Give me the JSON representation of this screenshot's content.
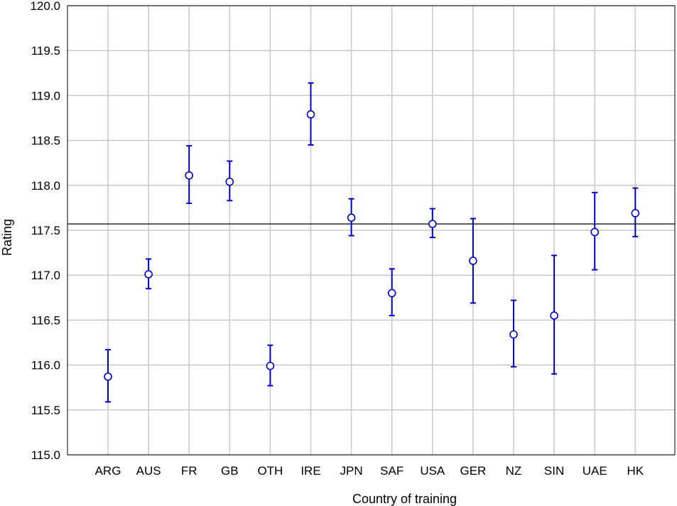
{
  "chart_data": {
    "type": "scatter",
    "title": "",
    "xlabel": "Country of training",
    "ylabel": "Rating",
    "ylim": [
      115.0,
      120.0
    ],
    "yticks": [
      "115.0",
      "115.5",
      "116.0",
      "116.5",
      "117.0",
      "117.5",
      "118.0",
      "118.5",
      "119.0",
      "119.5",
      "120.0"
    ],
    "grid": true,
    "categories": [
      "ARG",
      "AUS",
      "FR",
      "GB",
      "OTH",
      "IRE",
      "JPN",
      "SAF",
      "USA",
      "GER",
      "NZ",
      "SIN",
      "UAE",
      "HK"
    ],
    "values": [
      115.87,
      117.01,
      118.11,
      118.04,
      115.99,
      118.79,
      117.64,
      116.8,
      117.57,
      117.16,
      116.34,
      116.55,
      117.48,
      117.69
    ],
    "error_low": [
      115.59,
      116.85,
      117.8,
      117.83,
      115.77,
      118.45,
      117.44,
      116.55,
      117.42,
      116.69,
      115.98,
      115.9,
      117.06,
      117.43
    ],
    "error_high": [
      116.17,
      117.18,
      118.44,
      118.27,
      116.22,
      119.14,
      117.85,
      117.07,
      117.74,
      117.63,
      116.72,
      117.22,
      117.92,
      117.97
    ],
    "reference_line": 117.57,
    "marker_color": "#0000cc",
    "line_color": "#000000",
    "grid_color": "#c8c8c8"
  }
}
